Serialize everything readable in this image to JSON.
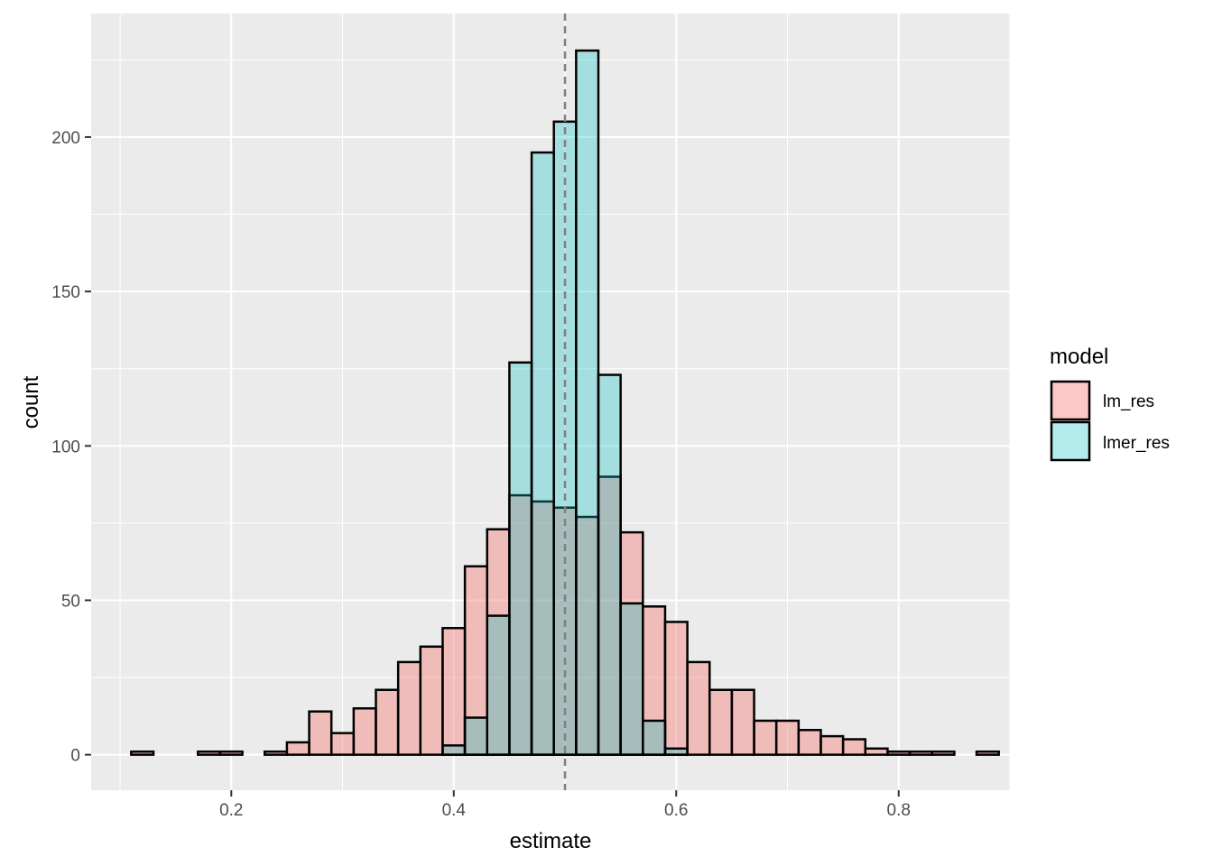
{
  "chart_data": {
    "type": "bar",
    "title": "",
    "xlabel": "estimate",
    "ylabel": "count",
    "xlim": [
      0.074,
      0.9
    ],
    "ylim": [
      -11.5,
      240
    ],
    "x_ticks": [
      0.2,
      0.4,
      0.6,
      0.8
    ],
    "x_tick_labels": [
      "0.2",
      "0.4",
      "0.6",
      "0.8"
    ],
    "y_ticks": [
      0,
      50,
      100,
      150,
      200
    ],
    "y_tick_labels": [
      "0",
      "50",
      "100",
      "150",
      "200"
    ],
    "grid": true,
    "bin_width": 0.02,
    "reference_line": 0.5,
    "legend": {
      "title": "model",
      "position": "right",
      "entries": [
        "lm_res",
        "lmer_res"
      ]
    },
    "series": [
      {
        "name": "lm_res",
        "color": "#F8766D",
        "fill_opacity": 0.4,
        "x": [
          0.12,
          0.14,
          0.16,
          0.18,
          0.2,
          0.22,
          0.24,
          0.26,
          0.28,
          0.3,
          0.32,
          0.34,
          0.36,
          0.38,
          0.4,
          0.42,
          0.44,
          0.46,
          0.48,
          0.5,
          0.52,
          0.54,
          0.56,
          0.58,
          0.6,
          0.62,
          0.64,
          0.66,
          0.68,
          0.7,
          0.72,
          0.74,
          0.76,
          0.78,
          0.8,
          0.82,
          0.84,
          0.86,
          0.88
        ],
        "values": [
          1,
          0,
          0,
          1,
          1,
          0,
          1,
          4,
          14,
          7,
          15,
          21,
          30,
          35,
          41,
          61,
          73,
          84,
          82,
          80,
          77,
          90,
          72,
          48,
          43,
          30,
          21,
          21,
          11,
          11,
          8,
          6,
          5,
          2,
          1,
          1,
          1,
          0,
          1
        ]
      },
      {
        "name": "lmer_res",
        "color": "#00BFC4",
        "fill_opacity": 0.3,
        "x": [
          0.4,
          0.42,
          0.44,
          0.46,
          0.48,
          0.5,
          0.52,
          0.54,
          0.56,
          0.58,
          0.6
        ],
        "values": [
          3,
          12,
          45,
          127,
          195,
          205,
          228,
          123,
          49,
          11,
          2
        ]
      }
    ]
  }
}
